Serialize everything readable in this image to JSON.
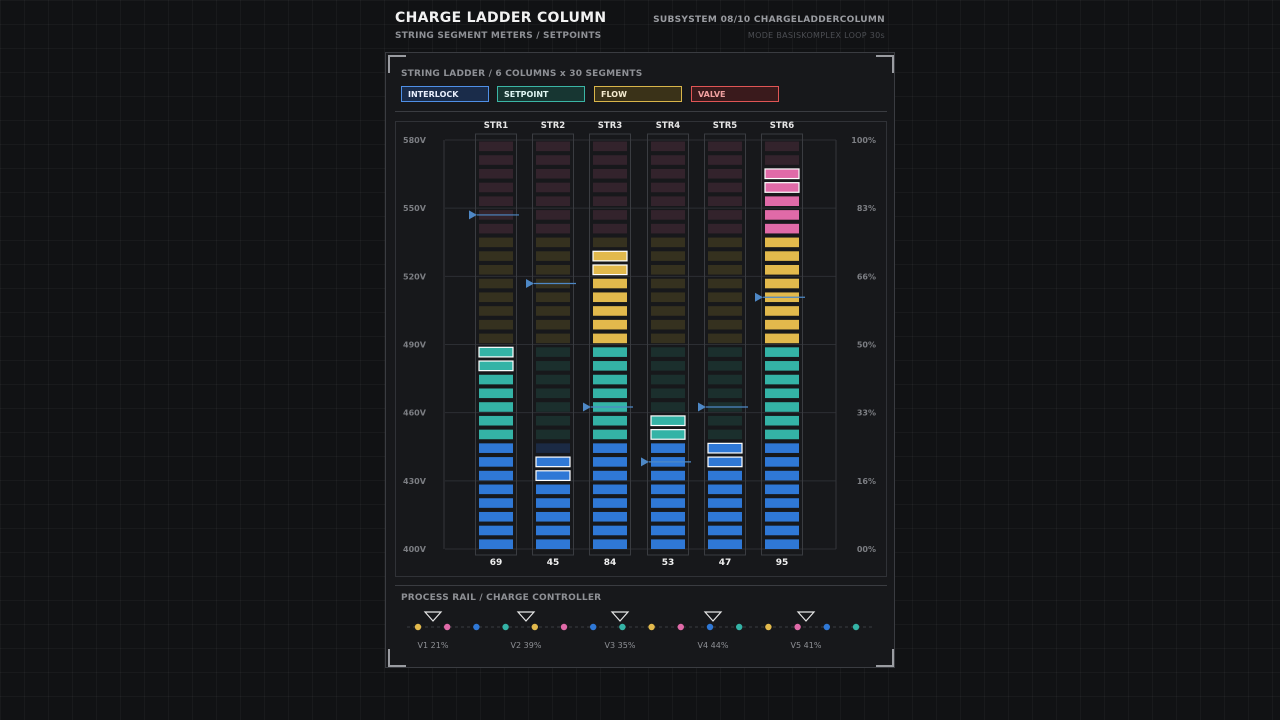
{
  "header": {
    "title": "CHARGE LADDER COLUMN",
    "subtitle": "STRING SEGMENT METERS / SETPOINTS",
    "subsystem": "SUBSYSTEM 08/10  CHARGELADDERCOLUMN",
    "mode_line": "MODE BASISKOMPLEX  LOOP 30s"
  },
  "ladder": {
    "section_title": "STRING LADDER / 6 COLUMNS x 30 SEGMENTS",
    "legend": [
      {
        "label": "INTERLOCK",
        "color": "#4f8fe6",
        "text_color": "#e8eefc",
        "bg": "#1a2c4a"
      },
      {
        "label": "SETPOINT",
        "color": "#3bb5a5",
        "text_color": "#dff5f2",
        "bg": "#173632"
      },
      {
        "label": "FLOW",
        "color": "#d9b54a",
        "text_color": "#f5ecd0",
        "bg": "#3a3218"
      },
      {
        "label": "VALVE",
        "color": "#e05555",
        "text_color": "#f0a0a0",
        "bg": "#3a1a1c"
      }
    ]
  },
  "chart_data": {
    "type": "bar",
    "segments_per_column": 30,
    "categories": [
      "STR1",
      "STR2",
      "STR3",
      "STR4",
      "STR5",
      "STR6"
    ],
    "values": [
      69,
      45,
      84,
      53,
      47,
      95
    ],
    "lit_segments": [
      15,
      7,
      22,
      10,
      8,
      28
    ],
    "setpoint_segments": [
      25,
      20,
      11,
      7,
      11,
      19
    ],
    "left_axis_ticks": [
      "580V",
      "550V",
      "520V",
      "490V",
      "460V",
      "430V",
      "400V"
    ],
    "right_axis_ticks": [
      "100%",
      "83%",
      "66%",
      "50%",
      "33%",
      "16%",
      "00%"
    ],
    "zone_colors": {
      "blue": "#2f78d6",
      "teal": "#34b3a6",
      "amber": "#e2b94c",
      "pink": "#e06aa8",
      "marker": "#4e88c6"
    }
  },
  "rail": {
    "section_title": "PROCESS RAIL / CHARGE CONTROLLER",
    "valves": [
      "V1 21%",
      "V2 39%",
      "V3 35%",
      "V4 44%",
      "V5 41%"
    ],
    "dots": [
      "amber",
      "pink",
      "blue",
      "teal",
      "amber",
      "pink",
      "blue",
      "teal",
      "amber",
      "pink",
      "blue",
      "teal",
      "amber",
      "pink",
      "blue",
      "teal"
    ]
  }
}
